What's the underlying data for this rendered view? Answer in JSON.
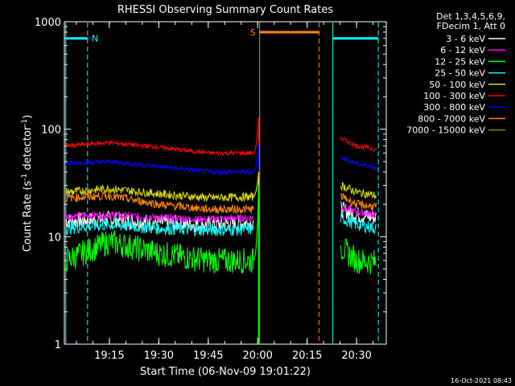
{
  "chart_data": {
    "type": "line",
    "title": "RHESSI Observing Summary Count Rates",
    "xlabel": "Start Time (06-Nov-09 19:01:22)",
    "ylabel": "Count Rate (s",
    "ylabel_sup1": "-1",
    "ylabel_mid": " detector",
    "ylabel_sup2": "-1",
    "ylabel_end": ")",
    "y_scale": "log",
    "ylim": [
      1,
      1000
    ],
    "xlim_minutes": [
      19.0227,
      20.65
    ],
    "x_ticks": [
      {
        "label": "19:15",
        "t": 19.25
      },
      {
        "label": "19:30",
        "t": 19.5
      },
      {
        "label": "19:45",
        "t": 19.75
      },
      {
        "label": "20:00",
        "t": 20.0
      },
      {
        "label": "20:15",
        "t": 20.25
      },
      {
        "label": "20:30",
        "t": 20.5
      }
    ],
    "y_ticks": [
      {
        "label": "1",
        "v": 1
      },
      {
        "label": "10",
        "v": 10
      },
      {
        "label": "100",
        "v": 100
      },
      {
        "label": "1000",
        "v": 1000
      }
    ],
    "legend_header": [
      "Det 1,3,4,5,6,9,",
      "FDecim 1, Att 0"
    ],
    "series": [
      {
        "name": "3 - 6 keV",
        "color": "#ffffff",
        "segments": [
          {
            "t0": 19.03,
            "t1": 19.98,
            "points": [
              [
                19.03,
                14
              ],
              [
                19.25,
                14.5
              ],
              [
                19.5,
                13.5
              ],
              [
                19.75,
                13
              ],
              [
                19.98,
                13.5
              ]
            ]
          },
          {
            "t0": 20.42,
            "t1": 20.6,
            "points": [
              [
                20.42,
                18
              ],
              [
                20.5,
                16
              ],
              [
                20.6,
                15
              ]
            ]
          }
        ]
      },
      {
        "name": "6 - 12 keV",
        "color": "#ff00ff",
        "segments": [
          {
            "t0": 19.03,
            "t1": 19.98,
            "points": [
              [
                19.03,
                15.5
              ],
              [
                19.25,
                16
              ],
              [
                19.5,
                15
              ],
              [
                19.75,
                14.5
              ],
              [
                19.98,
                15
              ]
            ]
          },
          {
            "t0": 20.42,
            "t1": 20.6,
            "points": [
              [
                20.42,
                19
              ],
              [
                20.5,
                17
              ],
              [
                20.6,
                16
              ]
            ]
          }
        ]
      },
      {
        "name": "12 - 25 keV",
        "color": "#00ff00",
        "segments": [
          {
            "t0": 19.03,
            "t1": 19.98,
            "points": [
              [
                19.03,
                6
              ],
              [
                19.25,
                9
              ],
              [
                19.5,
                7
              ],
              [
                19.75,
                6
              ],
              [
                19.98,
                6
              ]
            ]
          },
          {
            "t0": 20.42,
            "t1": 20.6,
            "points": [
              [
                20.42,
                8
              ],
              [
                20.5,
                6
              ],
              [
                20.6,
                5.8
              ]
            ]
          }
        ]
      },
      {
        "name": "25 - 50 keV",
        "color": "#00ffff",
        "segments": [
          {
            "t0": 19.03,
            "t1": 19.98,
            "points": [
              [
                19.03,
                12
              ],
              [
                19.25,
                13
              ],
              [
                19.5,
                12
              ],
              [
                19.75,
                11.5
              ],
              [
                19.98,
                11.8
              ]
            ]
          },
          {
            "t0": 20.42,
            "t1": 20.6,
            "points": [
              [
                20.42,
                15
              ],
              [
                20.5,
                13
              ],
              [
                20.6,
                12
              ]
            ]
          }
        ]
      },
      {
        "name": "50 - 100 keV",
        "color": "#dddd00",
        "segments": [
          {
            "t0": 19.03,
            "t1": 19.98,
            "points": [
              [
                19.03,
                26
              ],
              [
                19.25,
                28
              ],
              [
                19.5,
                25
              ],
              [
                19.75,
                23
              ],
              [
                19.98,
                23.5
              ]
            ]
          },
          {
            "t0": 20.42,
            "t1": 20.6,
            "points": [
              [
                20.42,
                30
              ],
              [
                20.5,
                26
              ],
              [
                20.6,
                24
              ]
            ]
          }
        ]
      },
      {
        "name": "100 - 300 keV",
        "color": "#ff0000",
        "segments": [
          {
            "t0": 19.03,
            "t1": 19.98,
            "points": [
              [
                19.03,
                70
              ],
              [
                19.25,
                75
              ],
              [
                19.5,
                68
              ],
              [
                19.75,
                60
              ],
              [
                19.98,
                60
              ]
            ]
          },
          {
            "t0": 20.42,
            "t1": 20.6,
            "points": [
              [
                20.42,
                82
              ],
              [
                20.5,
                70
              ],
              [
                20.6,
                65
              ]
            ]
          }
        ]
      },
      {
        "name": "300 - 800 keV",
        "color": "#0000ff",
        "segments": [
          {
            "t0": 19.03,
            "t1": 19.98,
            "points": [
              [
                19.03,
                48
              ],
              [
                19.25,
                50
              ],
              [
                19.5,
                45
              ],
              [
                19.75,
                40
              ],
              [
                19.98,
                40
              ]
            ]
          },
          {
            "t0": 20.42,
            "t1": 20.6,
            "points": [
              [
                20.42,
                55
              ],
              [
                20.5,
                48
              ],
              [
                20.6,
                44
              ]
            ]
          }
        ]
      },
      {
        "name": "800 - 7000 keV",
        "color": "#ff8800",
        "segments": [
          {
            "t0": 19.03,
            "t1": 19.98,
            "points": [
              [
                19.03,
                23
              ],
              [
                19.25,
                24
              ],
              [
                19.5,
                20
              ],
              [
                19.75,
                18
              ],
              [
                19.98,
                18
              ]
            ]
          },
          {
            "t0": 20.42,
            "t1": 20.6,
            "points": [
              [
                20.42,
                24
              ],
              [
                20.5,
                20
              ],
              [
                20.6,
                19
              ]
            ]
          }
        ]
      },
      {
        "name": "7000 - 15000 keV",
        "color": "#888800",
        "segments": [
          {
            "t0": 20.005,
            "t1": 20.01,
            "points": [
              [
                20.005,
                1
              ],
              [
                20.007,
                2
              ],
              [
                20.01,
                1
              ]
            ]
          }
        ]
      }
    ],
    "flare_peaks": [
      {
        "series": "100 - 300 keV",
        "t": 20.005,
        "v": 130
      },
      {
        "series": "300 - 800 keV",
        "t": 20.005,
        "v": 75
      },
      {
        "series": "50 - 100 keV",
        "t": 20.005,
        "v": 40
      },
      {
        "series": "12 - 25 keV",
        "t": 20.005,
        "v": 30
      }
    ],
    "annotations": {
      "night_bars": [
        {
          "t0": 19.03,
          "t1": 19.14,
          "v": 700,
          "color": "#00ffff",
          "label": "N"
        },
        {
          "t0": 20.38,
          "t1": 20.61,
          "v": 700,
          "color": "#00ffff",
          "label": ""
        }
      ],
      "saa_bar": {
        "t0": 20.01,
        "t1": 20.31,
        "v": 800,
        "color": "#ff8800",
        "label": "S"
      },
      "vlines": [
        {
          "t": 19.03,
          "color": "#00ffff",
          "style": "solid"
        },
        {
          "t": 19.14,
          "color": "#00ffff",
          "style": "dashed"
        },
        {
          "t": 20.01,
          "color": "#ff8800",
          "style": "solid"
        },
        {
          "t": 20.38,
          "color": "#00ffff",
          "style": "solid"
        },
        {
          "t": 20.31,
          "color": "#ff8800",
          "style": "dashed"
        },
        {
          "t": 20.61,
          "color": "#00ffff",
          "style": "dashed"
        }
      ]
    },
    "grid": false,
    "legend_position": "right"
  },
  "footer_timestamp": "16-Oct-2021 08:43"
}
